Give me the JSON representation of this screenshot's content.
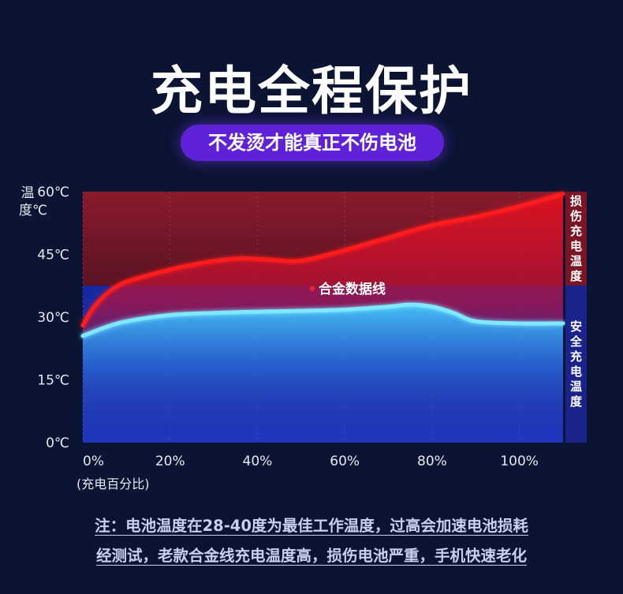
{
  "title": "充电全程保护",
  "subtitle": "不发烫才能真正不伤电池",
  "notes": [
    "注：电池温度在28-40度为最佳工作温度，过高会加速电池损耗",
    "经测试，老款合金线充电温度高，损伤电池严重，手机快速老化"
  ],
  "zones": {
    "danger_label": "损伤充电温度",
    "safe_label": "安全充电温度",
    "threshold": 37.5
  },
  "colors": {
    "background": "#0b1433",
    "danger_zone": "#6e1826",
    "safe_zone": "#1a2aa0",
    "alloy_line": "#ff1a1a",
    "cable_line": "#7fe8ff",
    "pill": "#5f22d8"
  },
  "chart_data": {
    "type": "line",
    "ylabel": "温度℃",
    "xlabel": "(充电百分比)",
    "xlim": [
      0,
      110
    ],
    "ylim": [
      0,
      60
    ],
    "x_ticks": [
      0,
      20,
      40,
      60,
      80,
      100
    ],
    "x_tick_labels": [
      "0%",
      "20%",
      "40%",
      "60%",
      "80%",
      "100%"
    ],
    "y_ticks": [
      0,
      15,
      30,
      45,
      60
    ],
    "y_tick_labels": [
      "0℃",
      "15℃",
      "30℃",
      "45℃",
      "60℃"
    ],
    "grid": true,
    "series": [
      {
        "name": "合金数据线",
        "color": "#ff1a1a",
        "x": [
          0,
          3,
          8,
          15,
          25,
          35,
          42,
          50,
          60,
          70,
          80,
          90,
          100,
          110
        ],
        "y": [
          28,
          33,
          37.5,
          40,
          42.5,
          44,
          43.8,
          43.5,
          46,
          49,
          52,
          54,
          56.5,
          59.5
        ]
      },
      {
        "name": "",
        "color": "#7fe8ff",
        "x": [
          0,
          5,
          10,
          20,
          30,
          40,
          50,
          60,
          70,
          75,
          80,
          85,
          90,
          100,
          110
        ],
        "y": [
          25.5,
          27.5,
          29,
          30.5,
          31,
          31.3,
          31.5,
          31.8,
          32.5,
          33,
          32.5,
          31,
          29,
          28.5,
          28.5
        ]
      }
    ]
  }
}
